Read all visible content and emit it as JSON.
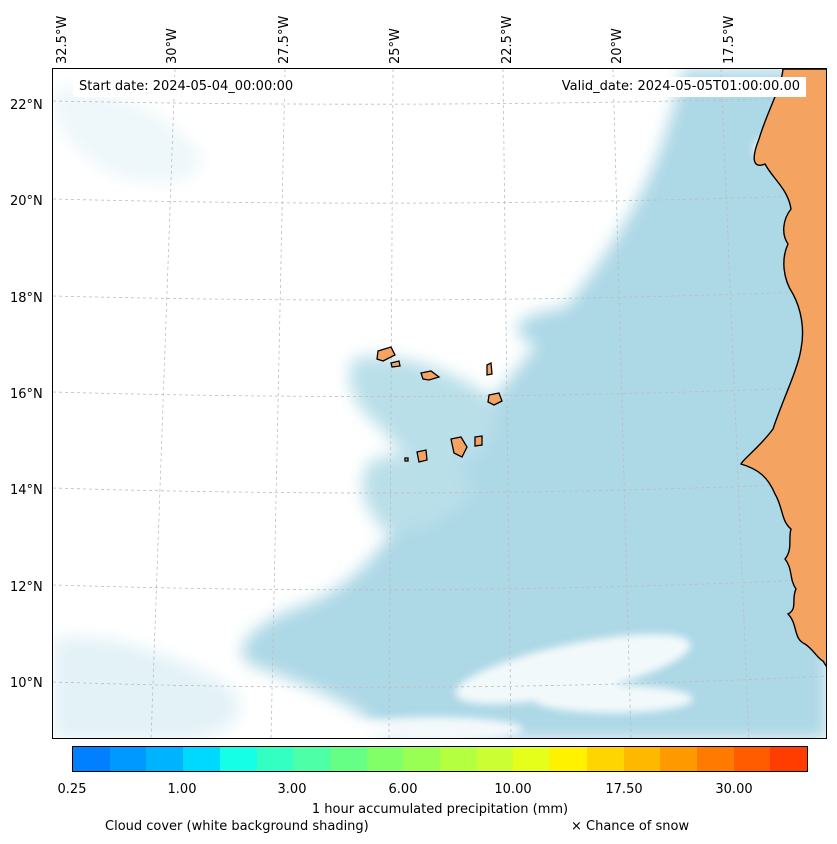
{
  "map": {
    "start_date": "Start date: 2024-05-04_00:00:00",
    "valid_date": "Valid_date: 2024-05-05T01:00:00.00",
    "longitude_labels": [
      "32.5°W",
      "30°W",
      "27.5°W",
      "25°W",
      "22.5°W",
      "20°W",
      "17.5°W"
    ],
    "latitude_labels": [
      "22°N",
      "20°N",
      "18°N",
      "16°N",
      "14°N",
      "12°N",
      "10°N"
    ],
    "land_color": "#f4a460",
    "ocean_cloud_color": "#add8e6",
    "cloud_cover_color": "#ffffff"
  },
  "colorbar": {
    "title": "1 hour accumulated precipitation (mm)",
    "tick_labels": [
      "0.25",
      "1.00",
      "3.00",
      "6.00",
      "10.00",
      "17.50",
      "30.00"
    ],
    "colors": [
      "#0080ff",
      "#0099ff",
      "#00b3ff",
      "#00d9ff",
      "#14ffe6",
      "#33ffc2",
      "#4dffa6",
      "#66ff85",
      "#80ff66",
      "#99ff52",
      "#b3ff40",
      "#ccff33",
      "#e6ff1a",
      "#fff200",
      "#ffd500",
      "#ffb800",
      "#ff9900",
      "#ff7a00",
      "#ff5c00",
      "#ff3d00"
    ]
  },
  "footer": {
    "cloud_cover_note": "Cloud cover (white background shading)",
    "snow_note": "× Chance of snow"
  }
}
